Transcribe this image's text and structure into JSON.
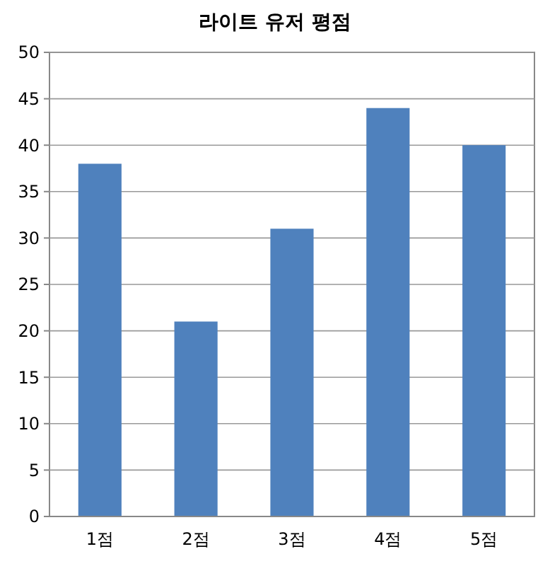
{
  "chart_data": {
    "type": "bar",
    "title": "라이트 유저 평점",
    "categories": [
      "1점",
      "2점",
      "3점",
      "4점",
      "5점"
    ],
    "values": [
      38,
      21,
      31,
      44,
      40
    ],
    "color": "#4f81bd",
    "ylim": [
      0,
      50
    ],
    "yticks": [
      0,
      5,
      10,
      15,
      20,
      25,
      30,
      35,
      40,
      45,
      50
    ],
    "grid": "y"
  }
}
